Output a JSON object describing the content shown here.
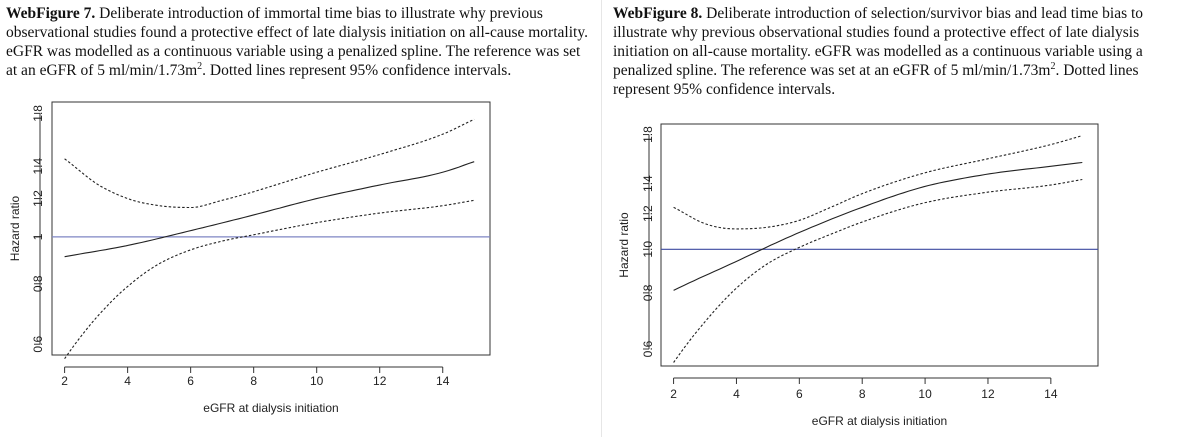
{
  "figures": [
    {
      "label": "WebFigure 7.",
      "caption_a": " Deliberate introduction of immortal time bias to illustrate why previous observational studies found a protective effect of late dialysis initiation on all-cause mortality. eGFR was modelled as a continuous variable using a penalized spline. The reference was set at an eGFR of 5 ml/min/1.73m",
      "caption_sup": "2",
      "caption_b": ". Dotted lines represent 95% confidence intervals."
    },
    {
      "label": "WebFigure 8.",
      "caption_a": " Deliberate introduction of selection/survivor bias and lead time bias to illustrate why previous observational studies found a protective effect of late dialysis initiation on all-cause mortality. eGFR was modelled as a continuous variable using a penalized spline. The reference was set at an eGFR of 5 ml/min/1.73m",
      "caption_sup": "2",
      "caption_b": ". Dotted lines represent 95% confidence intervals."
    }
  ],
  "chart_data": [
    {
      "type": "line",
      "title": "",
      "xlabel": "eGFR at dialysis initiation",
      "ylabel": "Hazard ratio",
      "y_scale": "log",
      "xlim": [
        1.6,
        15.5
      ],
      "ylim": [
        0.57,
        1.9
      ],
      "x_ticks": [
        2,
        4,
        6,
        8,
        10,
        12,
        14
      ],
      "y_ticks": [
        0.6,
        0.8,
        1,
        1.2,
        1.4,
        1.8
      ],
      "y_tick_labels": [
        "0.6",
        "0.8",
        "1",
        "1.2",
        "1.4",
        "1.8"
      ],
      "reference_line": 1,
      "reference_color": "#7f86c4",
      "series": [
        {
          "name": "estimate",
          "style": "solid",
          "x": [
            2,
            4,
            6,
            8,
            10,
            12,
            14,
            15
          ],
          "values": [
            0.91,
            0.96,
            1.03,
            1.11,
            1.2,
            1.28,
            1.36,
            1.43
          ]
        },
        {
          "name": "upper 95% CI",
          "style": "dotted",
          "x": [
            2,
            3,
            4,
            5,
            6,
            7,
            8,
            10,
            12,
            14,
            15
          ],
          "values": [
            1.45,
            1.29,
            1.2,
            1.16,
            1.15,
            1.19,
            1.24,
            1.36,
            1.48,
            1.63,
            1.75
          ]
        },
        {
          "name": "lower 95% CI",
          "style": "dotted",
          "x": [
            2,
            3,
            4,
            5,
            6,
            7,
            8,
            10,
            12,
            14,
            15
          ],
          "values": [
            0.56,
            0.68,
            0.79,
            0.88,
            0.94,
            0.98,
            1.01,
            1.07,
            1.12,
            1.16,
            1.19
          ]
        }
      ]
    },
    {
      "type": "line",
      "title": "",
      "xlabel": "eGFR at dialysis initiation",
      "ylabel": "Hazard ratio",
      "y_scale": "log",
      "xlim": [
        1.6,
        15.5
      ],
      "ylim": [
        0.55,
        1.9
      ],
      "x_ticks": [
        2,
        4,
        6,
        8,
        10,
        12,
        14
      ],
      "y_ticks": [
        0.6,
        0.8,
        1.0,
        1.2,
        1.4,
        1.8
      ],
      "y_tick_labels": [
        "0.6",
        "0.8",
        "1.0",
        "1.2",
        "1.4",
        "1.8"
      ],
      "reference_line": 1,
      "reference_color": "#3d4aa0",
      "series": [
        {
          "name": "estimate",
          "style": "solid",
          "x": [
            2,
            4,
            6,
            8,
            10,
            12,
            14,
            15
          ],
          "values": [
            0.81,
            0.94,
            1.09,
            1.24,
            1.38,
            1.47,
            1.53,
            1.56
          ]
        },
        {
          "name": "upper 95% CI",
          "style": "dotted",
          "x": [
            2,
            3,
            4,
            5,
            6,
            7,
            8,
            10,
            12,
            14,
            15
          ],
          "values": [
            1.24,
            1.14,
            1.11,
            1.12,
            1.16,
            1.24,
            1.33,
            1.48,
            1.59,
            1.71,
            1.79
          ]
        },
        {
          "name": "lower 95% CI",
          "style": "dotted",
          "x": [
            2,
            3,
            4,
            5,
            6,
            7,
            8,
            10,
            12,
            14,
            15
          ],
          "values": [
            0.56,
            0.69,
            0.82,
            0.93,
            1.01,
            1.08,
            1.15,
            1.27,
            1.34,
            1.39,
            1.43
          ]
        }
      ]
    }
  ]
}
